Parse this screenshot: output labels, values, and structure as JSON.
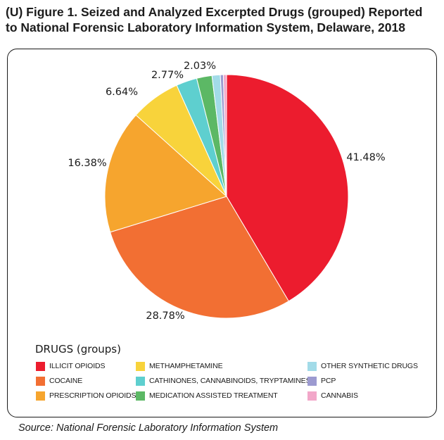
{
  "title_line1": "(U) Figure 1. Seized and Analyzed Excerpted Drugs (grouped) Reported",
  "title_line2": "to National Forensic Laboratory Information System, Delaware, 2018",
  "source": "Source: National Forensic Laboratory Information System",
  "chart_data": {
    "type": "pie",
    "legend_title": "DRUGS (groups)",
    "legend_placement": "bottom",
    "slices": [
      {
        "label": "ILLICIT OPIOIDS",
        "value": 41.48,
        "color": "#ec1c2e",
        "data_label": "41.48%"
      },
      {
        "label": "COCAINE",
        "value": 28.78,
        "color": "#f26f33",
        "data_label": "28.78%"
      },
      {
        "label": "PRESCRIPTION OPIOIDS",
        "value": 16.38,
        "color": "#f6a52e",
        "data_label": "16.38%"
      },
      {
        "label": "METHAMPHETAMINE",
        "value": 6.64,
        "color": "#f8d33b",
        "data_label": "6.64%"
      },
      {
        "label": "CATHINONES, CANNABINOIDS, TRYPTAMINES",
        "value": 2.77,
        "color": "#5ecfcf",
        "data_label": "2.77%"
      },
      {
        "label": "MEDICATION ASSISTED TREATMENT",
        "value": 2.03,
        "color": "#5cb865",
        "data_label": "2.03%"
      },
      {
        "label": "OTHER SYNTHETIC DRUGS",
        "value": 1.1,
        "color": "#a2dbe8",
        "data_label": ""
      },
      {
        "label": "PCP",
        "value": 0.4,
        "color": "#9c9ad0",
        "data_label": ""
      },
      {
        "label": "CANNABIS",
        "value": 0.42,
        "color": "#f2a7c9",
        "data_label": ""
      }
    ]
  }
}
